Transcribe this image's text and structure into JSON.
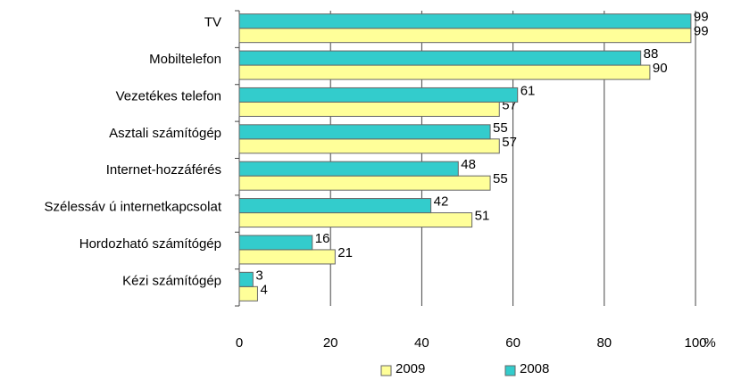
{
  "chart_data": {
    "type": "bar",
    "orientation": "horizontal",
    "categories": [
      "TV",
      "Mobiltelefon",
      "Vezetékes telefon",
      "Asztali számítógép",
      "Internet-hozzáférés",
      "Szélessáv ú internetkapcsolat",
      "Hordozható számítógép",
      "Kézi számítógép"
    ],
    "series": [
      {
        "name": "2009",
        "color": "#ffff99",
        "values": [
          99,
          90,
          57,
          57,
          55,
          51,
          21,
          4
        ]
      },
      {
        "name": "2008",
        "color": "#33cccc",
        "values": [
          99,
          88,
          61,
          55,
          48,
          42,
          16,
          3
        ]
      }
    ],
    "xlim": [
      0,
      100
    ],
    "xticks": [
      0,
      20,
      40,
      60,
      80,
      100
    ],
    "x_unit": "%",
    "grid": true,
    "legend": "bottom"
  }
}
